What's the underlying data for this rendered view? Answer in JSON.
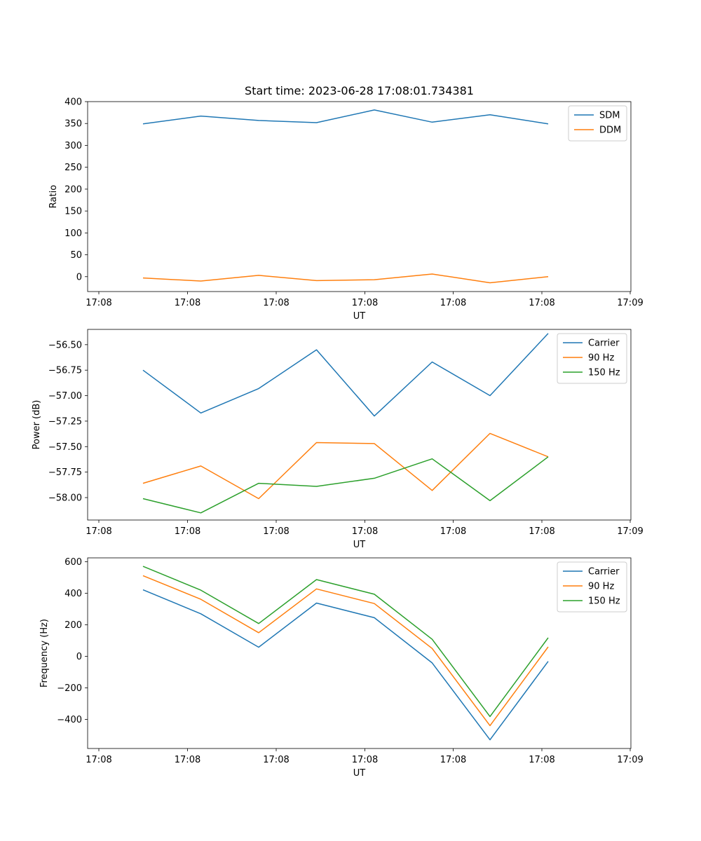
{
  "chart_data": [
    {
      "type": "line",
      "title": "Start time: 2023-06-28 17:08:01.734381",
      "xlabel": "UT",
      "ylabel": "Ratio",
      "x_tick_labels": [
        "17:08",
        "17:08",
        "17:08",
        "17:08",
        "17:08",
        "17:08",
        "17:09"
      ],
      "y_ticks": [
        0,
        50,
        100,
        150,
        200,
        250,
        300,
        350,
        400
      ],
      "ylim": [
        -34,
        400
      ],
      "legend_position": "top-right",
      "series": [
        {
          "name": "SDM",
          "color": "#1f77b4",
          "values": [
            349,
            367,
            357,
            352,
            381,
            353,
            370,
            349
          ]
        },
        {
          "name": "DDM",
          "color": "#ff7f0e",
          "values": [
            -3,
            -10,
            3,
            -9,
            -7,
            6,
            -14,
            0
          ]
        }
      ]
    },
    {
      "type": "line",
      "title": "",
      "xlabel": "UT",
      "ylabel": "Power (dB)",
      "x_tick_labels": [
        "17:08",
        "17:08",
        "17:08",
        "17:08",
        "17:08",
        "17:08",
        "17:09"
      ],
      "y_ticks": [
        -58.0,
        -57.75,
        -57.5,
        -57.25,
        -57.0,
        -56.75,
        -56.5
      ],
      "y_tick_labels": [
        "−58.00",
        "−57.75",
        "−57.50",
        "−57.25",
        "−57.00",
        "−56.75",
        "−56.50"
      ],
      "ylim": [
        -58.22,
        -56.35
      ],
      "legend_position": "top-right",
      "series": [
        {
          "name": "Carrier",
          "color": "#1f77b4",
          "values": [
            -56.75,
            -57.17,
            -56.93,
            -56.55,
            -57.2,
            -56.67,
            -57.0,
            -56.39
          ]
        },
        {
          "name": "90 Hz",
          "color": "#ff7f0e",
          "values": [
            -57.86,
            -57.69,
            -58.01,
            -57.46,
            -57.47,
            -57.93,
            -57.37,
            -57.6
          ]
        },
        {
          "name": "150 Hz",
          "color": "#2ca02c",
          "values": [
            -58.01,
            -58.15,
            -57.86,
            -57.89,
            -57.81,
            -57.62,
            -58.03,
            -57.6
          ]
        }
      ]
    },
    {
      "type": "line",
      "title": "",
      "xlabel": "UT",
      "ylabel": "Frequency (Hz)",
      "x_tick_labels": [
        "17:08",
        "17:08",
        "17:08",
        "17:08",
        "17:08",
        "17:08",
        "17:09"
      ],
      "y_ticks": [
        -400,
        -200,
        0,
        200,
        400,
        600
      ],
      "y_tick_labels": [
        "−400",
        "−200",
        "0",
        "200",
        "400",
        "600"
      ],
      "ylim": [
        -585,
        625
      ],
      "legend_position": "top-right",
      "series": [
        {
          "name": "Carrier",
          "color": "#1f77b4",
          "values": [
            422,
            270,
            58,
            338,
            245,
            -42,
            -530,
            -32
          ]
        },
        {
          "name": "90 Hz",
          "color": "#ff7f0e",
          "values": [
            512,
            362,
            150,
            428,
            335,
            50,
            -440,
            60
          ]
        },
        {
          "name": "150 Hz",
          "color": "#2ca02c",
          "values": [
            571,
            420,
            208,
            487,
            394,
            108,
            -382,
            118
          ]
        }
      ]
    }
  ]
}
